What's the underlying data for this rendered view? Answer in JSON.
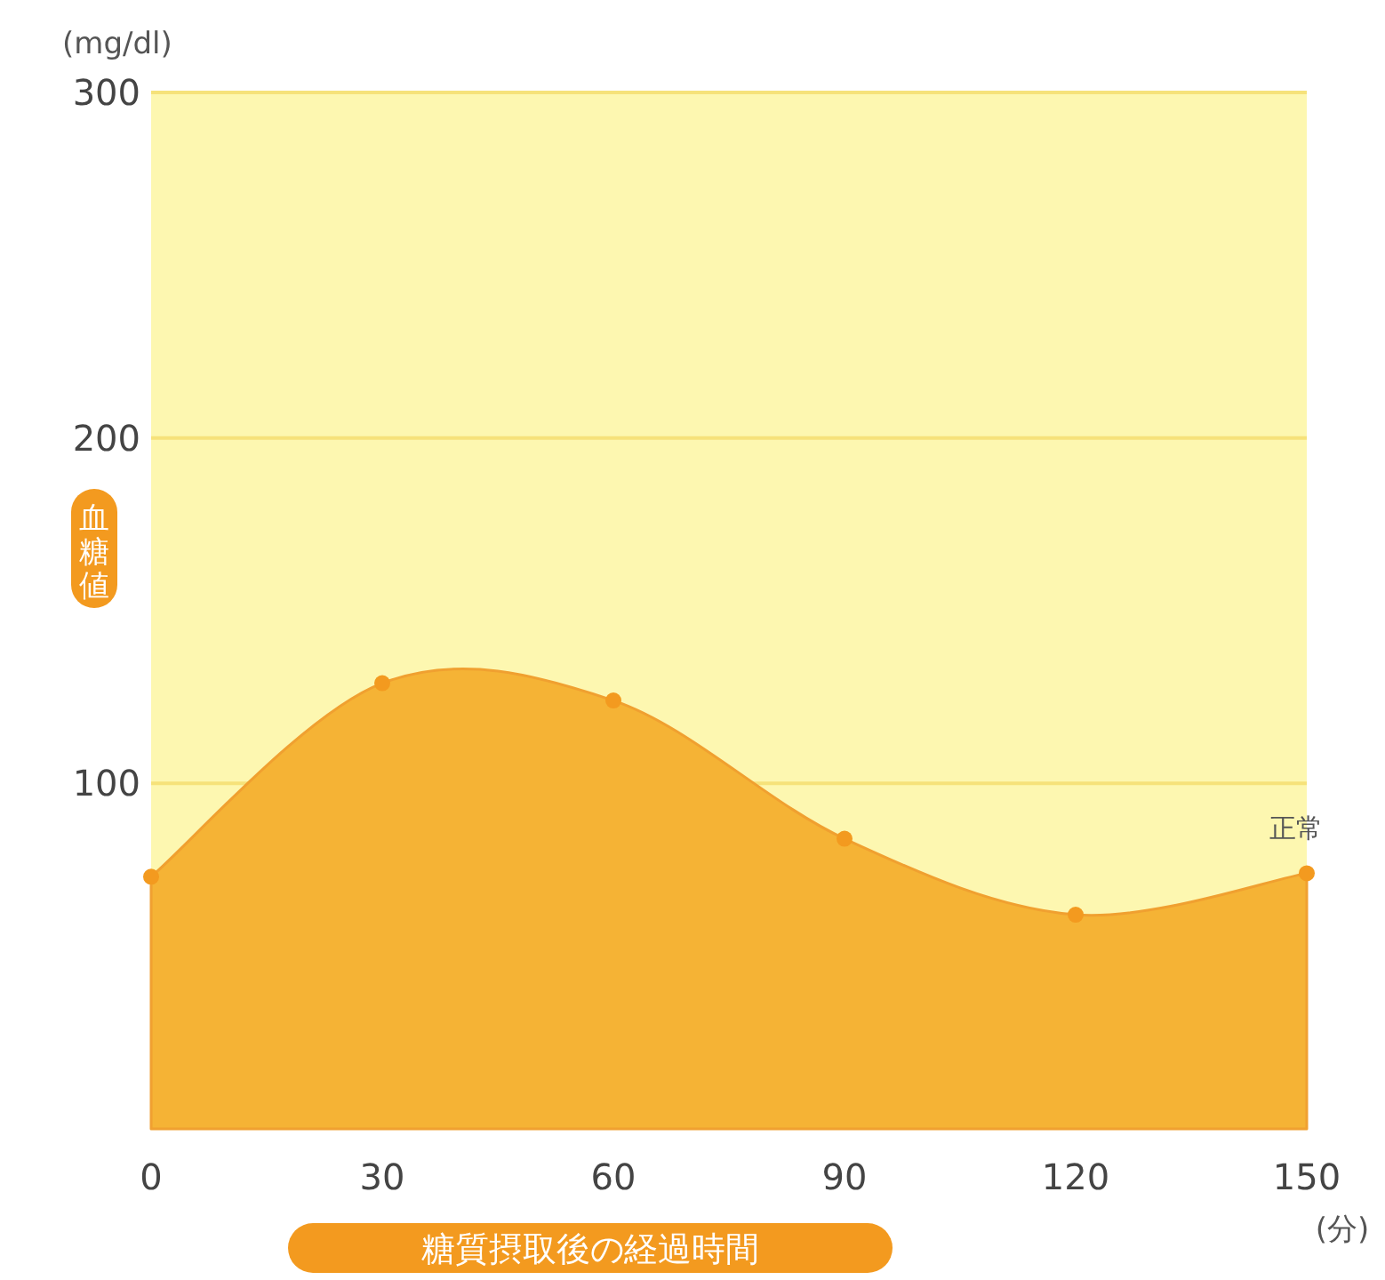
{
  "chart_data": {
    "type": "area",
    "ylabel": "血糖値",
    "xlabel": "糖質摂取後の経過時間",
    "x": [
      0,
      30,
      60,
      90,
      120,
      150
    ],
    "series": [
      {
        "color": "#f5b335",
        "values": [
          73,
          129,
          124,
          84,
          62,
          74
        ]
      }
    ],
    "xlim": [
      0,
      150
    ],
    "xticks": [
      0,
      30,
      60,
      90,
      120,
      150
    ],
    "ylim": [
      0,
      300
    ],
    "yticks": [
      100,
      200,
      300
    ],
    "grid": "y",
    "marker": "circle",
    "annotations": [
      "(mg/dl)",
      "(分)",
      {
        "text": "正常",
        "x": 150,
        "y": 74
      }
    ]
  }
}
